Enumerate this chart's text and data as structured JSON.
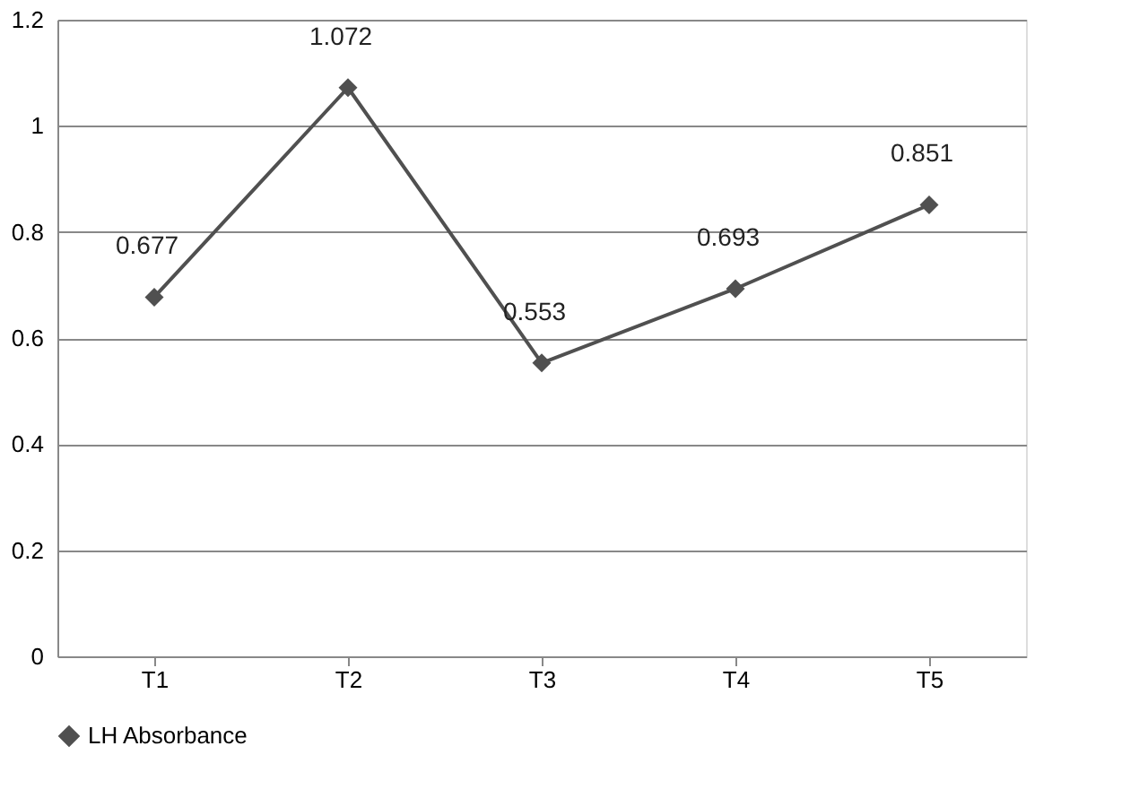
{
  "chart_data": {
    "type": "line",
    "categories": [
      "T1",
      "T2",
      "T3",
      "T4",
      "T5"
    ],
    "series": [
      {
        "name": "LH Absorbance",
        "color": "#505050",
        "values": [
          0.677,
          1.072,
          0.553,
          0.693,
          0.851
        ]
      }
    ],
    "ylim": [
      0,
      1.2
    ],
    "yticks": [
      0,
      0.2,
      0.4,
      0.6,
      0.8,
      1,
      1.2
    ],
    "grid": "y",
    "legend": "bottom",
    "marker": "diamond",
    "line_style": "solid",
    "data_labels": true
  }
}
